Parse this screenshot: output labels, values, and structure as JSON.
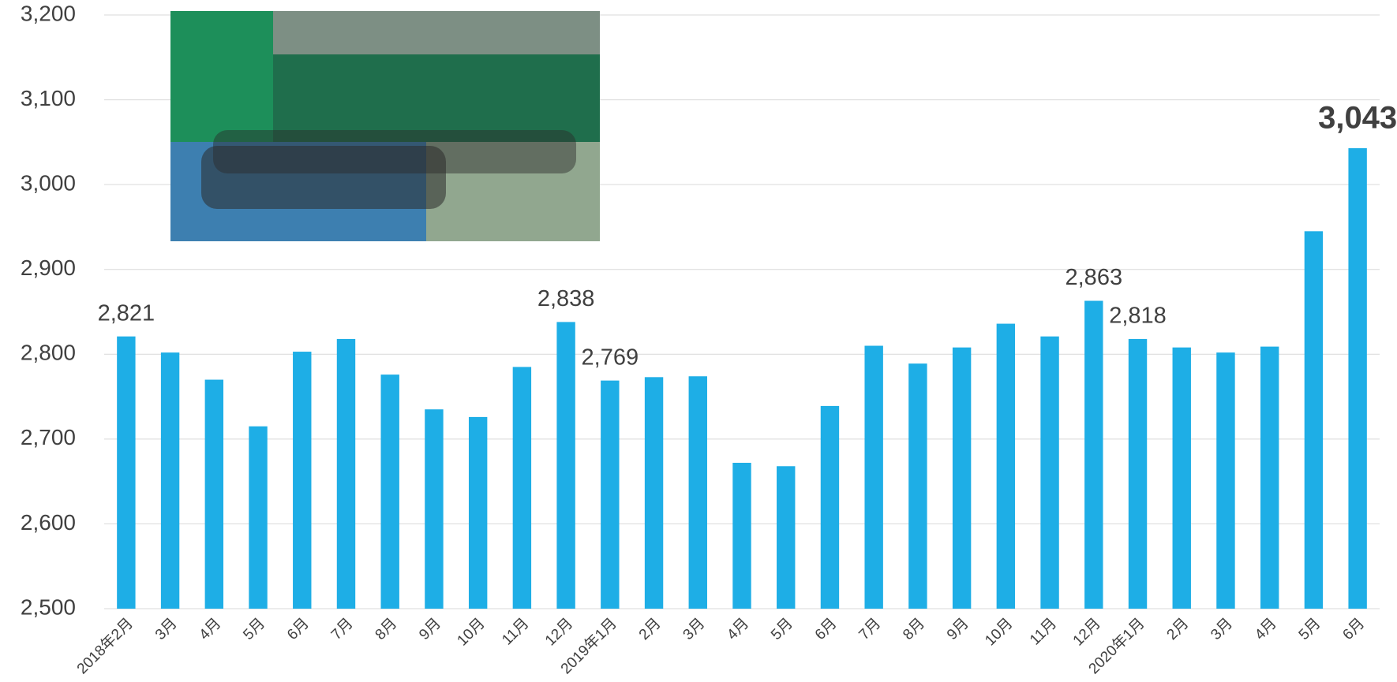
{
  "chart_data": {
    "type": "bar",
    "categories": [
      "2018年2月",
      "3月",
      "4月",
      "5月",
      "6月",
      "7月",
      "8月",
      "9月",
      "10月",
      "11月",
      "12月",
      "2019年1月",
      "2月",
      "3月",
      "4月",
      "5月",
      "6月",
      "7月",
      "8月",
      "9月",
      "10月",
      "11月",
      "12月",
      "2020年1月",
      "2月",
      "3月",
      "4月",
      "5月",
      "6月"
    ],
    "values": [
      2821,
      2802,
      2770,
      2715,
      2803,
      2818,
      2776,
      2735,
      2726,
      2785,
      2838,
      2769,
      2773,
      2774,
      2672,
      2668,
      2739,
      2810,
      2789,
      2808,
      2836,
      2821,
      2863,
      2818,
      2808,
      2802,
      2809,
      2945,
      3043
    ],
    "value_labels": [
      "2,821",
      null,
      null,
      null,
      null,
      null,
      null,
      null,
      null,
      null,
      "2,838",
      "2,769",
      null,
      null,
      null,
      null,
      null,
      null,
      null,
      null,
      null,
      null,
      "2,863",
      "2,818",
      null,
      null,
      null,
      null,
      "3,043"
    ],
    "color": "#1eaee6",
    "ylim": [
      2500,
      3200
    ],
    "yticks": [
      {
        "value": 2500,
        "label": "2,500"
      },
      {
        "value": 2600,
        "label": "2,600"
      },
      {
        "value": 2700,
        "label": "2,700"
      },
      {
        "value": 2800,
        "label": "2,800"
      },
      {
        "value": 2900,
        "label": "2,900"
      },
      {
        "value": 3000,
        "label": "3,000"
      },
      {
        "value": 3100,
        "label": "3,100"
      },
      {
        "value": 3200,
        "label": "3,200"
      }
    ],
    "grid": true
  }
}
